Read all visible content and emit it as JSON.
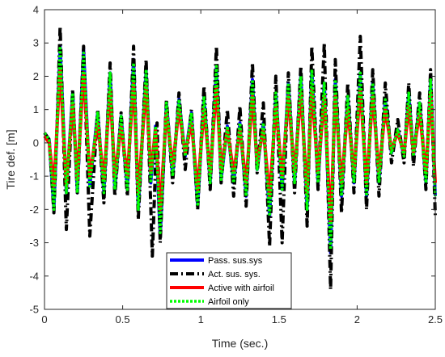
{
  "chart_data": {
    "type": "line",
    "xlabel": "Time (sec.)",
    "ylabel": "Tire def. [m]",
    "xlim": [
      0,
      2.5
    ],
    "ylim": [
      -5,
      4
    ],
    "xticks": [
      0,
      0.5,
      1,
      1.5,
      2,
      2.5
    ],
    "xtick_labels": [
      "0",
      "0.5",
      "1",
      "1.5",
      "2",
      "2.5"
    ],
    "yticks": [
      -5,
      -4,
      -3,
      -2,
      -1,
      0,
      1,
      2,
      3,
      4
    ],
    "ytick_labels": [
      "-5",
      "-4",
      "-3",
      "-2",
      "-1",
      "0",
      "1",
      "2",
      "3",
      "4"
    ],
    "grid": false,
    "legend_position": "bottom-center",
    "series": [
      {
        "name": "Pass. sus.sys",
        "color": "#0000ff",
        "style": "solid",
        "x": [
          0,
          0.03,
          0.06,
          0.1,
          0.14,
          0.18,
          0.21,
          0.25,
          0.29,
          0.34,
          0.38,
          0.42,
          0.45,
          0.49,
          0.53,
          0.57,
          0.6,
          0.65,
          0.68,
          0.71,
          0.74,
          0.78,
          0.82,
          0.86,
          0.9,
          0.94,
          0.98,
          1.02,
          1.06,
          1.1,
          1.13,
          1.17,
          1.21,
          1.25,
          1.29,
          1.33,
          1.36,
          1.4,
          1.44,
          1.48,
          1.52,
          1.56,
          1.6,
          1.64,
          1.68,
          1.71,
          1.75,
          1.79,
          1.83,
          1.86,
          1.9,
          1.94,
          1.98,
          2.02,
          2.06,
          2.1,
          2.14,
          2.18,
          2.22,
          2.26,
          2.3,
          2.33,
          2.36,
          2.4,
          2.44,
          2.47,
          2.5
        ],
        "values": [
          0.3,
          0.1,
          -2.0,
          2.9,
          -1.5,
          1.5,
          -1.5,
          2.8,
          -1.3,
          0.9,
          -1.5,
          2.1,
          -1.4,
          0.8,
          -1.4,
          2.5,
          -2.0,
          2.2,
          -1.2,
          0.5,
          -2.8,
          1.2,
          -1.0,
          1.3,
          -0.4,
          0.9,
          -1.9,
          1.4,
          -1.2,
          2.3,
          -1.1,
          0.5,
          -1.2,
          0.6,
          -1.6,
          1.9,
          -0.8,
          0.6,
          -2.2,
          1.5,
          -1.4,
          1.8,
          -1.2,
          2.0,
          -2.0,
          2.2,
          -1.2,
          1.8,
          -3.3,
          1.9,
          -1.6,
          1.4,
          -1.2,
          2.1,
          -1.6,
          1.8,
          -1.2,
          1.3,
          -0.3,
          0.4,
          -0.4,
          1.5,
          -0.4,
          1.2,
          -1.2,
          1.9,
          -1.6
        ]
      },
      {
        "name": "Act. sus. sys.",
        "color": "#000000",
        "style": "dashdot",
        "x": [
          0,
          0.03,
          0.06,
          0.08,
          0.1,
          0.14,
          0.18,
          0.21,
          0.25,
          0.29,
          0.34,
          0.38,
          0.42,
          0.45,
          0.49,
          0.53,
          0.57,
          0.6,
          0.65,
          0.69,
          0.72,
          0.74,
          0.78,
          0.82,
          0.86,
          0.9,
          0.94,
          0.98,
          1.02,
          1.06,
          1.1,
          1.13,
          1.17,
          1.21,
          1.25,
          1.29,
          1.33,
          1.36,
          1.4,
          1.44,
          1.48,
          1.52,
          1.56,
          1.6,
          1.64,
          1.68,
          1.71,
          1.75,
          1.79,
          1.83,
          1.86,
          1.9,
          1.94,
          1.98,
          2.02,
          2.06,
          2.1,
          2.14,
          2.18,
          2.22,
          2.26,
          2.3,
          2.33,
          2.36,
          2.4,
          2.44,
          2.47,
          2.5
        ],
        "values": [
          0.3,
          0.1,
          -2.1,
          0.5,
          3.5,
          -2.6,
          1.6,
          -1.5,
          2.9,
          -2.8,
          1.0,
          -1.8,
          2.4,
          -1.6,
          0.9,
          -1.6,
          2.9,
          -2.3,
          2.5,
          -3.4,
          0.6,
          -3.0,
          1.3,
          -1.2,
          1.5,
          -0.8,
          1.0,
          -2.0,
          1.7,
          -1.4,
          2.9,
          -1.2,
          1.0,
          -1.6,
          1.1,
          -1.9,
          2.4,
          -0.9,
          1.2,
          -3.1,
          2.0,
          -3.0,
          2.1,
          -1.5,
          2.3,
          -2.5,
          2.9,
          -1.4,
          3.0,
          -4.4,
          2.5,
          -2.1,
          1.8,
          -1.5,
          3.2,
          -2.0,
          2.2,
          -1.6,
          1.8,
          -0.6,
          0.7,
          -0.6,
          1.8,
          -0.7,
          1.5,
          -1.4,
          2.2,
          -2.2
        ]
      },
      {
        "name": "Active with airfoil",
        "color": "#ff0000",
        "style": "solid",
        "x": [
          0,
          0.03,
          0.06,
          0.1,
          0.14,
          0.18,
          0.21,
          0.25,
          0.29,
          0.34,
          0.38,
          0.42,
          0.45,
          0.49,
          0.53,
          0.57,
          0.6,
          0.65,
          0.68,
          0.71,
          0.74,
          0.78,
          0.82,
          0.86,
          0.9,
          0.94,
          0.98,
          1.02,
          1.06,
          1.1,
          1.13,
          1.17,
          1.21,
          1.25,
          1.29,
          1.33,
          1.36,
          1.4,
          1.44,
          1.48,
          1.52,
          1.56,
          1.6,
          1.64,
          1.68,
          1.71,
          1.75,
          1.79,
          1.83,
          1.86,
          1.9,
          1.94,
          1.98,
          2.02,
          2.06,
          2.1,
          2.14,
          2.18,
          2.22,
          2.26,
          2.3,
          2.33,
          2.36,
          2.4,
          2.44,
          2.47,
          2.5
        ],
        "values": [
          0.2,
          0.0,
          -1.3,
          2.2,
          -1.3,
          1.2,
          -1.1,
          2.1,
          -1.0,
          0.6,
          -1.1,
          1.6,
          -1.0,
          0.5,
          -1.0,
          1.8,
          -1.5,
          1.7,
          -0.9,
          0.4,
          -2.0,
          0.9,
          -0.7,
          1.0,
          -0.3,
          0.6,
          -1.4,
          1.0,
          -0.9,
          1.7,
          -0.8,
          0.4,
          -0.9,
          0.4,
          -1.2,
          1.4,
          -0.6,
          0.4,
          -1.6,
          1.1,
          -1.0,
          1.4,
          -0.9,
          1.5,
          -1.5,
          1.6,
          -0.9,
          1.4,
          -2.4,
          1.4,
          -1.2,
          1.0,
          -0.9,
          1.6,
          -1.2,
          1.4,
          -0.9,
          1.0,
          -0.2,
          0.3,
          -0.3,
          1.1,
          -0.3,
          0.9,
          -0.9,
          1.5,
          -1.2
        ]
      },
      {
        "name": "Airfoil only",
        "color": "#00ff00",
        "style": "dotted",
        "x": [
          0,
          0.03,
          0.06,
          0.1,
          0.14,
          0.18,
          0.21,
          0.25,
          0.29,
          0.34,
          0.38,
          0.42,
          0.45,
          0.49,
          0.53,
          0.57,
          0.6,
          0.65,
          0.68,
          0.71,
          0.74,
          0.78,
          0.82,
          0.86,
          0.9,
          0.94,
          0.98,
          1.02,
          1.06,
          1.1,
          1.13,
          1.17,
          1.21,
          1.25,
          1.29,
          1.33,
          1.36,
          1.4,
          1.44,
          1.48,
          1.52,
          1.56,
          1.6,
          1.64,
          1.68,
          1.71,
          1.75,
          1.79,
          1.83,
          1.86,
          1.9,
          1.94,
          1.98,
          2.02,
          2.06,
          2.1,
          2.14,
          2.18,
          2.22,
          2.26,
          2.3,
          2.33,
          2.36,
          2.4,
          2.44,
          2.47,
          2.5
        ],
        "values": [
          0.3,
          0.1,
          -2.0,
          2.9,
          -1.5,
          1.5,
          -1.5,
          2.7,
          -1.3,
          0.9,
          -1.5,
          2.1,
          -1.4,
          0.8,
          -1.4,
          2.4,
          -2.0,
          2.2,
          -1.2,
          0.5,
          -2.7,
          1.2,
          -1.0,
          1.3,
          -0.4,
          0.9,
          -1.9,
          1.4,
          -1.2,
          2.3,
          -1.1,
          0.5,
          -1.2,
          0.6,
          -1.6,
          1.9,
          -0.8,
          0.6,
          -2.2,
          1.5,
          -1.4,
          1.8,
          -1.2,
          2.0,
          -2.0,
          2.2,
          -1.2,
          1.8,
          -3.2,
          1.9,
          -1.6,
          1.4,
          -1.2,
          2.1,
          -1.6,
          1.8,
          -1.2,
          1.3,
          -0.3,
          0.4,
          -0.4,
          1.5,
          -0.4,
          1.2,
          -1.2,
          1.9,
          -1.6
        ]
      }
    ]
  }
}
